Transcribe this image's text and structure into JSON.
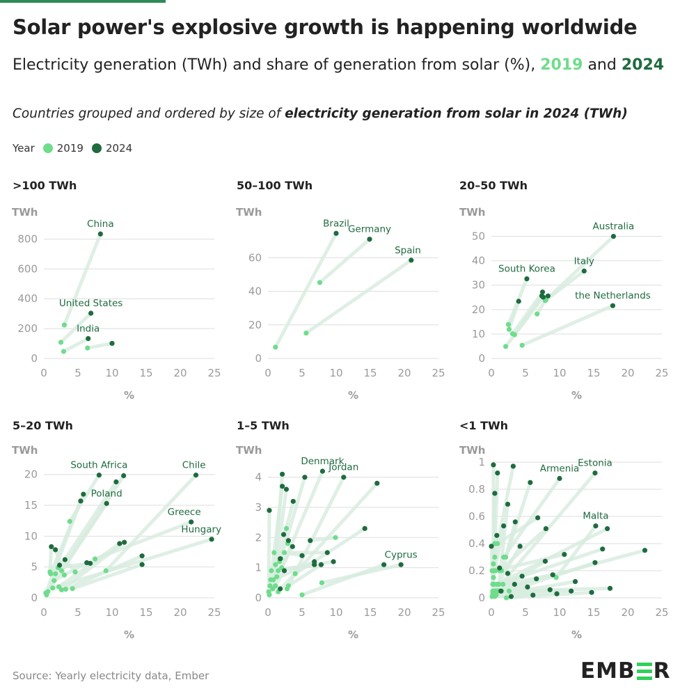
{
  "header": {
    "title": "Solar power's explosive growth is happening worldwide",
    "subtitle_pre": "Electricity generation (TWh) and share of generation from solar (%),",
    "year_a": "2019",
    "subtitle_and": "and",
    "year_b": "2024",
    "note_pre": "Countries grouped and ordered by size of",
    "note_bold": "electricity generation from solar in 2024 (TWh)"
  },
  "legend": {
    "label": "Year",
    "items": [
      "2019",
      "2024"
    ]
  },
  "colors": {
    "y2019": "#6fdc8c",
    "y2024": "#1f6b3f",
    "link": "#d8ecdf",
    "grid": "#dedede",
    "axis_text": "#9a9a9a",
    "label_text": "#1f6b3f"
  },
  "footer": {
    "source": "Source: Yearly electricity data, Ember",
    "logo": "EMBER"
  },
  "chart_data": [
    {
      "type": "scatter",
      "title": ">100 TWh",
      "ylabel": "TWh",
      "xlabel": "%",
      "xlim": [
        0,
        25
      ],
      "ylim": [
        0,
        900
      ],
      "xticks": [
        0,
        5,
        10,
        15,
        20,
        25
      ],
      "yticks": [
        0,
        200,
        400,
        600,
        800
      ],
      "countries": [
        {
          "name": "China",
          "x2019": 3.0,
          "y2019": 224,
          "x2024": 8.3,
          "y2024": 834
        },
        {
          "name": "United States",
          "x2019": 2.5,
          "y2019": 108,
          "x2024": 6.9,
          "y2024": 303
        },
        {
          "name": "India",
          "x2019": 2.9,
          "y2019": 47,
          "x2024": 6.5,
          "y2024": 133
        },
        {
          "name": "",
          "x2019": 6.4,
          "y2019": 70,
          "x2024": 10.0,
          "y2024": 101
        }
      ]
    },
    {
      "type": "scatter",
      "title": "50–100 TWh",
      "ylabel": "TWh",
      "xlabel": "%",
      "xlim": [
        0,
        25
      ],
      "ylim": [
        0,
        80
      ],
      "xticks": [
        0,
        5,
        10,
        15,
        20,
        25
      ],
      "yticks": [
        0,
        20,
        40,
        60
      ],
      "countries": [
        {
          "name": "Brazil",
          "x2019": 1.1,
          "y2019": 6.7,
          "x2024": 10.0,
          "y2024": 74.5
        },
        {
          "name": "Germany",
          "x2019": 7.6,
          "y2019": 45.2,
          "x2024": 14.9,
          "y2024": 71
        },
        {
          "name": "Spain",
          "x2019": 5.6,
          "y2019": 15.1,
          "x2024": 21.0,
          "y2024": 58.5
        }
      ]
    },
    {
      "type": "scatter",
      "title": "20–50 TWh",
      "ylabel": "TWh",
      "xlabel": "%",
      "xlim": [
        0,
        25
      ],
      "ylim": [
        0,
        55
      ],
      "xticks": [
        0,
        5,
        10,
        15,
        20,
        25
      ],
      "yticks": [
        0,
        10,
        20,
        30,
        40,
        50
      ],
      "countries": [
        {
          "name": "Australia",
          "x2019": 8.0,
          "y2019": 24,
          "x2024": 17.9,
          "y2024": 50
        },
        {
          "name": "South Korea",
          "x2019": 2.5,
          "y2019": 13.9,
          "x2024": 5.2,
          "y2024": 32.6
        },
        {
          "name": "Italy",
          "x2019": 7.9,
          "y2019": 23.7,
          "x2024": 13.6,
          "y2024": 35.8
        },
        {
          "name": "the Netherlands",
          "x2019": 4.5,
          "y2019": 5.4,
          "x2024": 17.8,
          "y2024": 21.6
        },
        {
          "name": "",
          "x2019": 2.6,
          "y2019": 11.9,
          "x2024": 4.0,
          "y2024": 23.4
        },
        {
          "name": "",
          "x2019": 3.1,
          "y2019": 10.1,
          "x2024": 7.5,
          "y2024": 27.2
        },
        {
          "name": "",
          "x2019": 3.4,
          "y2019": 9.7,
          "x2024": 7.4,
          "y2024": 25.6
        },
        {
          "name": "",
          "x2019": 6.7,
          "y2019": 18.2,
          "x2024": 8.3,
          "y2024": 25.6
        },
        {
          "name": "",
          "x2019": 2.1,
          "y2019": 4.9,
          "x2024": 7.6,
          "y2024": 25.1
        }
      ]
    },
    {
      "type": "scatter",
      "title": "5–20 TWh",
      "ylabel": "TWh",
      "xlabel": "%",
      "xlim": [
        0,
        25
      ],
      "ylim": [
        0,
        22
      ],
      "xticks": [
        0,
        5,
        10,
        15,
        20,
        25
      ],
      "yticks": [
        0,
        5,
        10,
        15,
        20
      ],
      "countries": [
        {
          "name": "South Africa",
          "x2019": 3.8,
          "y2019": 12.4,
          "x2024": 8.1,
          "y2024": 19.9
        },
        {
          "name": "Chile",
          "x2019": 9.1,
          "y2019": 4.4,
          "x2024": 22.3,
          "y2024": 19.9
        },
        {
          "name": "Poland",
          "x2019": 0.6,
          "y2019": 1.0,
          "x2024": 9.2,
          "y2024": 15.3
        },
        {
          "name": "Greece",
          "x2019": 7.5,
          "y2019": 6.3,
          "x2024": 21.6,
          "y2024": 12.3
        },
        {
          "name": "Hungary",
          "x2019": 1.3,
          "y2019": 1.6,
          "x2024": 24.6,
          "y2024": 9.5
        },
        {
          "name": "",
          "x2019": 2.6,
          "y2019": 4.4,
          "x2024": 11.7,
          "y2024": 19.8
        },
        {
          "name": "",
          "x2019": 1.7,
          "y2019": 3.9,
          "x2024": 10.6,
          "y2024": 18.8
        },
        {
          "name": "",
          "x2019": 1.0,
          "y2019": 3.9,
          "x2024": 5.8,
          "y2024": 16.8
        },
        {
          "name": "",
          "x2019": 0.3,
          "y2019": 0.8,
          "x2024": 5.4,
          "y2024": 15.7
        },
        {
          "name": "",
          "x2019": 2.2,
          "y2019": 1.8,
          "x2024": 11.1,
          "y2024": 8.8
        },
        {
          "name": "",
          "x2019": 2.6,
          "y2019": 1.3,
          "x2024": 11.8,
          "y2024": 9.0
        },
        {
          "name": "",
          "x2019": 3.2,
          "y2019": 1.4,
          "x2024": 14.4,
          "y2024": 6.8
        },
        {
          "name": "",
          "x2019": 4.2,
          "y2019": 1.5,
          "x2024": 14.4,
          "y2024": 5.4
        },
        {
          "name": "",
          "x2019": 1.5,
          "y2019": 2.8,
          "x2024": 6.3,
          "y2024": 5.7
        },
        {
          "name": "",
          "x2019": 2.1,
          "y2019": 4.9,
          "x2024": 6.8,
          "y2024": 5.6
        },
        {
          "name": "",
          "x2019": 0.9,
          "y2019": 4.2,
          "x2024": 1.1,
          "y2024": 8.3
        },
        {
          "name": "",
          "x2019": 3.0,
          "y2019": 3.7,
          "x2024": 1.7,
          "y2024": 7.8
        },
        {
          "name": "",
          "x2019": 4.6,
          "y2019": 4.2,
          "x2024": 3.1,
          "y2024": 6.2
        },
        {
          "name": "",
          "x2019": 0.4,
          "y2019": 0.5,
          "x2024": 2.3,
          "y2024": 5.3
        }
      ]
    },
    {
      "type": "scatter",
      "title": "1–5 TWh",
      "ylabel": "TWh",
      "xlabel": "%",
      "xlim": [
        0,
        25
      ],
      "ylim": [
        0,
        4.5
      ],
      "xticks": [
        0,
        5,
        10,
        15,
        20,
        25
      ],
      "yticks": [
        0,
        1,
        2,
        3,
        4
      ],
      "countries": [
        {
          "name": "Denmark",
          "x2019": 2.0,
          "y2019": 1.0,
          "x2024": 8.0,
          "y2024": 4.2
        },
        {
          "name": "Jordan",
          "x2019": 2.8,
          "y2019": 0.3,
          "x2024": 11.1,
          "y2024": 4.0
        },
        {
          "name": "Cyprus",
          "x2019": 7.9,
          "y2019": 0.5,
          "x2024": 19.5,
          "y2024": 1.1
        },
        {
          "name": "",
          "x2019": 1.5,
          "y2019": 0.2,
          "x2024": 16.0,
          "y2024": 3.8
        },
        {
          "name": "",
          "x2019": 1.1,
          "y2019": 1.1,
          "x2024": 2.1,
          "y2024": 4.1
        },
        {
          "name": "",
          "x2019": 1.9,
          "y2019": 1.3,
          "x2024": 5.4,
          "y2024": 4.0
        },
        {
          "name": "",
          "x2019": 0.4,
          "y2019": 0.6,
          "x2024": 2.1,
          "y2024": 3.7
        },
        {
          "name": "",
          "x2019": 0.7,
          "y2019": 0.3,
          "x2024": 2.7,
          "y2024": 3.6
        },
        {
          "name": "",
          "x2019": 0.2,
          "y2019": 0.1,
          "x2024": 3.7,
          "y2024": 3.2
        },
        {
          "name": "",
          "x2019": 0.1,
          "y2019": 0.2,
          "x2024": 0.2,
          "y2024": 2.9
        },
        {
          "name": "",
          "x2019": 4.0,
          "y2019": 0.8,
          "x2024": 14.2,
          "y2024": 2.3
        },
        {
          "name": "",
          "x2019": 2.7,
          "y2019": 2.3,
          "x2024": 2.3,
          "y2024": 2.1
        },
        {
          "name": "",
          "x2019": 2.9,
          "y2019": 1.8,
          "x2024": 3.0,
          "y2024": 1.9
        },
        {
          "name": "",
          "x2019": 9.9,
          "y2019": 2.0,
          "x2024": 6.2,
          "y2024": 1.9
        },
        {
          "name": "",
          "x2019": 1.3,
          "y2019": 0.7,
          "x2024": 3.6,
          "y2024": 1.7
        },
        {
          "name": "",
          "x2019": 0.9,
          "y2019": 1.5,
          "x2024": 8.7,
          "y2024": 1.5
        },
        {
          "name": "",
          "x2019": 2.4,
          "y2019": 1.5,
          "x2024": 5.0,
          "y2024": 1.4
        },
        {
          "name": "",
          "x2019": 1.7,
          "y2019": 1.2,
          "x2024": 1.8,
          "y2024": 1.3
        },
        {
          "name": "",
          "x2019": 0.8,
          "y2019": 0.6,
          "x2024": 6.8,
          "y2024": 1.2
        },
        {
          "name": "",
          "x2019": 1.5,
          "y2019": 0.9,
          "x2024": 6.8,
          "y2024": 1.1
        },
        {
          "name": "",
          "x2019": 3.0,
          "y2019": 0.4,
          "x2024": 7.8,
          "y2024": 1.1
        },
        {
          "name": "",
          "x2019": 0.5,
          "y2019": 0.9,
          "x2024": 9.6,
          "y2024": 1.2
        },
        {
          "name": "",
          "x2019": 5.0,
          "y2019": 0.1,
          "x2024": 17.0,
          "y2024": 1.1
        },
        {
          "name": "",
          "x2019": 1.1,
          "y2019": 0.4,
          "x2024": 2.4,
          "y2024": 0.9
        },
        {
          "name": "",
          "x2019": 0.3,
          "y2019": 0.4,
          "x2024": 1.8,
          "y2024": 0.3
        }
      ]
    },
    {
      "type": "scatter",
      "title": "<1 TWh",
      "ylabel": "TWh",
      "xlabel": "%",
      "xlim": [
        0,
        25
      ],
      "ylim": [
        0,
        1.0
      ],
      "xticks": [
        0,
        5,
        10,
        15,
        20,
        25
      ],
      "yticks": [
        0,
        0.2,
        0.4,
        0.6,
        0.8,
        1
      ],
      "countries": [
        {
          "name": "Armenia",
          "x2019": 1.8,
          "y2019": 0.3,
          "x2024": 10.0,
          "y2024": 0.88
        },
        {
          "name": "Estonia",
          "x2019": 0.6,
          "y2019": 0.05,
          "x2024": 15.2,
          "y2024": 0.92
        },
        {
          "name": "Malta",
          "x2019": 9.5,
          "y2019": 0.15,
          "x2024": 15.3,
          "y2024": 0.53
        },
        {
          "name": "",
          "x2019": 0.3,
          "y2019": 0.1,
          "x2024": 0.3,
          "y2024": 0.98
        },
        {
          "name": "",
          "x2019": 0.5,
          "y2019": 0.3,
          "x2024": 3.2,
          "y2024": 0.97
        },
        {
          "name": "",
          "x2019": 0.4,
          "y2019": 0.2,
          "x2024": 0.9,
          "y2024": 0.92
        },
        {
          "name": "",
          "x2019": 1.5,
          "y2019": 0.2,
          "x2024": 5.7,
          "y2024": 0.85
        },
        {
          "name": "",
          "x2019": 0.2,
          "y2019": 0.05,
          "x2024": 0.5,
          "y2024": 0.77
        },
        {
          "name": "",
          "x2019": 1.1,
          "y2019": 0.1,
          "x2024": 2.4,
          "y2024": 0.69
        },
        {
          "name": "",
          "x2019": 0.9,
          "y2019": 0.4,
          "x2024": 6.8,
          "y2024": 0.59
        },
        {
          "name": "",
          "x2019": 2.1,
          "y2019": 0.3,
          "x2024": 3.5,
          "y2024": 0.56
        },
        {
          "name": "",
          "x2019": 0.3,
          "y2019": 0.15,
          "x2024": 1.8,
          "y2024": 0.53
        },
        {
          "name": "",
          "x2019": 1.2,
          "y2019": 0.2,
          "x2024": 8.0,
          "y2024": 0.51
        },
        {
          "name": "",
          "x2019": 0.5,
          "y2019": 0.4,
          "x2024": 0.8,
          "y2024": 0.46
        },
        {
          "name": "",
          "x2019": 0.8,
          "y2019": 0.1,
          "x2024": 17.0,
          "y2024": 0.51
        },
        {
          "name": "",
          "x2019": 1.0,
          "y2019": 0.1,
          "x2024": 16.3,
          "y2024": 0.36
        },
        {
          "name": "",
          "x2019": 0.4,
          "y2019": 0.05,
          "x2024": 22.5,
          "y2024": 0.35
        },
        {
          "name": "",
          "x2019": 0.6,
          "y2019": 0.2,
          "x2024": 10.7,
          "y2024": 0.32
        },
        {
          "name": "",
          "x2019": 2.6,
          "y2019": 0.05,
          "x2024": 15.2,
          "y2024": 0.26
        },
        {
          "name": "",
          "x2019": 0.2,
          "y2019": 0.1,
          "x2024": 0.0,
          "y2024": 0.38
        },
        {
          "name": "",
          "x2019": 0.4,
          "y2019": 0.05,
          "x2024": 4.2,
          "y2024": 0.38
        },
        {
          "name": "",
          "x2019": 1.5,
          "y2019": 0.05,
          "x2024": 17.4,
          "y2024": 0.07
        },
        {
          "name": "",
          "x2019": 2.2,
          "y2019": 0.0,
          "x2024": 14.7,
          "y2024": 0.04
        },
        {
          "name": "",
          "x2019": 1.1,
          "y2019": 0.05,
          "x2024": 11.7,
          "y2024": 0.05
        },
        {
          "name": "",
          "x2019": 0.7,
          "y2019": 0.02,
          "x2024": 12.3,
          "y2024": 0.12
        },
        {
          "name": "",
          "x2019": 1.7,
          "y2019": 0.1,
          "x2024": 9.0,
          "y2024": 0.17
        },
        {
          "name": "",
          "x2019": 0.9,
          "y2019": 0.05,
          "x2024": 7.9,
          "y2024": 0.27
        },
        {
          "name": "",
          "x2019": 0.1,
          "y2019": 0.2,
          "x2024": 1.2,
          "y2024": 0.22
        },
        {
          "name": "",
          "x2019": 0.3,
          "y2019": 0.25,
          "x2024": 2.4,
          "y2024": 0.18
        },
        {
          "name": "",
          "x2019": 0.4,
          "y2019": 0.1,
          "x2024": 4.5,
          "y2024": 0.16
        },
        {
          "name": "",
          "x2019": 0.6,
          "y2019": 0.05,
          "x2024": 6.6,
          "y2024": 0.14
        },
        {
          "name": "",
          "x2019": 0.2,
          "y2019": 0.02,
          "x2024": 3.4,
          "y2024": 0.1
        },
        {
          "name": "",
          "x2019": 0.8,
          "y2019": 0.05,
          "x2024": 5.3,
          "y2024": 0.08
        },
        {
          "name": "",
          "x2019": 0.1,
          "y2019": 0.01,
          "x2024": 8.6,
          "y2024": 0.06
        },
        {
          "name": "",
          "x2019": 0.3,
          "y2019": 0.02,
          "x2024": 9.6,
          "y2024": 0.03
        },
        {
          "name": "",
          "x2019": 0.5,
          "y2019": 0.01,
          "x2024": 6.1,
          "y2024": 0.02
        },
        {
          "name": "",
          "x2019": 0.4,
          "y2019": 0.03,
          "x2024": 1.4,
          "y2024": 0.05
        },
        {
          "name": "",
          "x2019": 0.2,
          "y2019": 0.04,
          "x2024": 2.9,
          "y2024": 0.01
        }
      ]
    }
  ]
}
